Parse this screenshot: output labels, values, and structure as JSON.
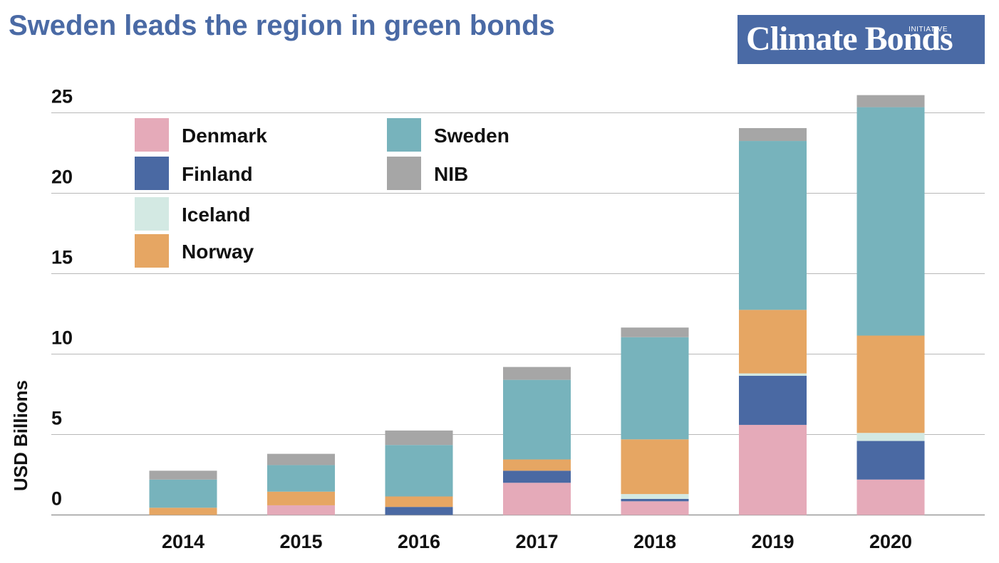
{
  "title": "Sweden leads the region in green bonds",
  "logo": {
    "main": "Climate Bonds",
    "sub": "INITIATIVE"
  },
  "chart_data": {
    "type": "bar",
    "stacked": true,
    "categories": [
      "2014",
      "2015",
      "2016",
      "2017",
      "2018",
      "2019",
      "2020"
    ],
    "ylabel": "USD Billions",
    "xlabel": "",
    "ylim": [
      0,
      26
    ],
    "yticks": [
      0,
      5,
      10,
      15,
      20,
      25
    ],
    "grid": true,
    "legend_position": "top-left",
    "series": [
      {
        "name": "Denmark",
        "color": "#e5aab9",
        "values": [
          0,
          0.6,
          0,
          2.0,
          0.85,
          5.6,
          2.2
        ]
      },
      {
        "name": "Finland",
        "color": "#4a69a3",
        "values": [
          0,
          0,
          0.5,
          0.75,
          0.15,
          3.05,
          2.4
        ]
      },
      {
        "name": "Iceland",
        "color": "#d3e9e3",
        "values": [
          0,
          0,
          0,
          0,
          0.3,
          0.15,
          0.5
        ]
      },
      {
        "name": "Norway",
        "color": "#e6a663",
        "values": [
          0.45,
          0.85,
          0.65,
          0.7,
          3.4,
          3.95,
          6.05
        ]
      },
      {
        "name": "Sweden",
        "color": "#77b3bc",
        "values": [
          1.75,
          1.65,
          3.2,
          4.95,
          6.35,
          10.5,
          14.2
        ]
      },
      {
        "name": "NIB",
        "color": "#a6a6a6",
        "values": [
          0.55,
          0.7,
          0.9,
          0.8,
          0.6,
          0.8,
          0.75
        ]
      }
    ]
  }
}
